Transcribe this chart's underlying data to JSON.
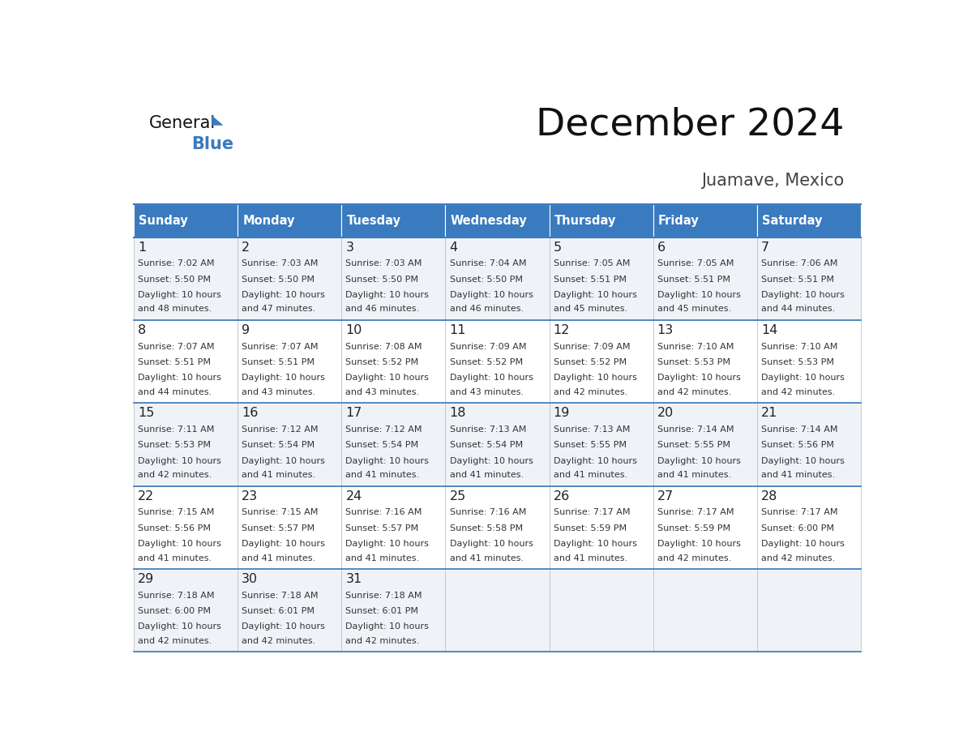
{
  "title": "December 2024",
  "subtitle": "Juamave, Mexico",
  "header_color": "#3a7abf",
  "header_text_color": "#ffffff",
  "cell_bg_even": "#eff3f8",
  "cell_bg_odd": "#ffffff",
  "text_color": "#222222",
  "days_of_week": [
    "Sunday",
    "Monday",
    "Tuesday",
    "Wednesday",
    "Thursday",
    "Friday",
    "Saturday"
  ],
  "calendar": [
    [
      {
        "day": 1,
        "sunrise": "7:02 AM",
        "sunset": "5:50 PM",
        "daylight": "10 hours and 48 minutes."
      },
      {
        "day": 2,
        "sunrise": "7:03 AM",
        "sunset": "5:50 PM",
        "daylight": "10 hours and 47 minutes."
      },
      {
        "day": 3,
        "sunrise": "7:03 AM",
        "sunset": "5:50 PM",
        "daylight": "10 hours and 46 minutes."
      },
      {
        "day": 4,
        "sunrise": "7:04 AM",
        "sunset": "5:50 PM",
        "daylight": "10 hours and 46 minutes."
      },
      {
        "day": 5,
        "sunrise": "7:05 AM",
        "sunset": "5:51 PM",
        "daylight": "10 hours and 45 minutes."
      },
      {
        "day": 6,
        "sunrise": "7:05 AM",
        "sunset": "5:51 PM",
        "daylight": "10 hours and 45 minutes."
      },
      {
        "day": 7,
        "sunrise": "7:06 AM",
        "sunset": "5:51 PM",
        "daylight": "10 hours and 44 minutes."
      }
    ],
    [
      {
        "day": 8,
        "sunrise": "7:07 AM",
        "sunset": "5:51 PM",
        "daylight": "10 hours and 44 minutes."
      },
      {
        "day": 9,
        "sunrise": "7:07 AM",
        "sunset": "5:51 PM",
        "daylight": "10 hours and 43 minutes."
      },
      {
        "day": 10,
        "sunrise": "7:08 AM",
        "sunset": "5:52 PM",
        "daylight": "10 hours and 43 minutes."
      },
      {
        "day": 11,
        "sunrise": "7:09 AM",
        "sunset": "5:52 PM",
        "daylight": "10 hours and 43 minutes."
      },
      {
        "day": 12,
        "sunrise": "7:09 AM",
        "sunset": "5:52 PM",
        "daylight": "10 hours and 42 minutes."
      },
      {
        "day": 13,
        "sunrise": "7:10 AM",
        "sunset": "5:53 PM",
        "daylight": "10 hours and 42 minutes."
      },
      {
        "day": 14,
        "sunrise": "7:10 AM",
        "sunset": "5:53 PM",
        "daylight": "10 hours and 42 minutes."
      }
    ],
    [
      {
        "day": 15,
        "sunrise": "7:11 AM",
        "sunset": "5:53 PM",
        "daylight": "10 hours and 42 minutes."
      },
      {
        "day": 16,
        "sunrise": "7:12 AM",
        "sunset": "5:54 PM",
        "daylight": "10 hours and 41 minutes."
      },
      {
        "day": 17,
        "sunrise": "7:12 AM",
        "sunset": "5:54 PM",
        "daylight": "10 hours and 41 minutes."
      },
      {
        "day": 18,
        "sunrise": "7:13 AM",
        "sunset": "5:54 PM",
        "daylight": "10 hours and 41 minutes."
      },
      {
        "day": 19,
        "sunrise": "7:13 AM",
        "sunset": "5:55 PM",
        "daylight": "10 hours and 41 minutes."
      },
      {
        "day": 20,
        "sunrise": "7:14 AM",
        "sunset": "5:55 PM",
        "daylight": "10 hours and 41 minutes."
      },
      {
        "day": 21,
        "sunrise": "7:14 AM",
        "sunset": "5:56 PM",
        "daylight": "10 hours and 41 minutes."
      }
    ],
    [
      {
        "day": 22,
        "sunrise": "7:15 AM",
        "sunset": "5:56 PM",
        "daylight": "10 hours and 41 minutes."
      },
      {
        "day": 23,
        "sunrise": "7:15 AM",
        "sunset": "5:57 PM",
        "daylight": "10 hours and 41 minutes."
      },
      {
        "day": 24,
        "sunrise": "7:16 AM",
        "sunset": "5:57 PM",
        "daylight": "10 hours and 41 minutes."
      },
      {
        "day": 25,
        "sunrise": "7:16 AM",
        "sunset": "5:58 PM",
        "daylight": "10 hours and 41 minutes."
      },
      {
        "day": 26,
        "sunrise": "7:17 AM",
        "sunset": "5:59 PM",
        "daylight": "10 hours and 41 minutes."
      },
      {
        "day": 27,
        "sunrise": "7:17 AM",
        "sunset": "5:59 PM",
        "daylight": "10 hours and 42 minutes."
      },
      {
        "day": 28,
        "sunrise": "7:17 AM",
        "sunset": "6:00 PM",
        "daylight": "10 hours and 42 minutes."
      }
    ],
    [
      {
        "day": 29,
        "sunrise": "7:18 AM",
        "sunset": "6:00 PM",
        "daylight": "10 hours and 42 minutes."
      },
      {
        "day": 30,
        "sunrise": "7:18 AM",
        "sunset": "6:01 PM",
        "daylight": "10 hours and 42 minutes."
      },
      {
        "day": 31,
        "sunrise": "7:18 AM",
        "sunset": "6:01 PM",
        "daylight": "10 hours and 42 minutes."
      },
      null,
      null,
      null,
      null
    ]
  ]
}
